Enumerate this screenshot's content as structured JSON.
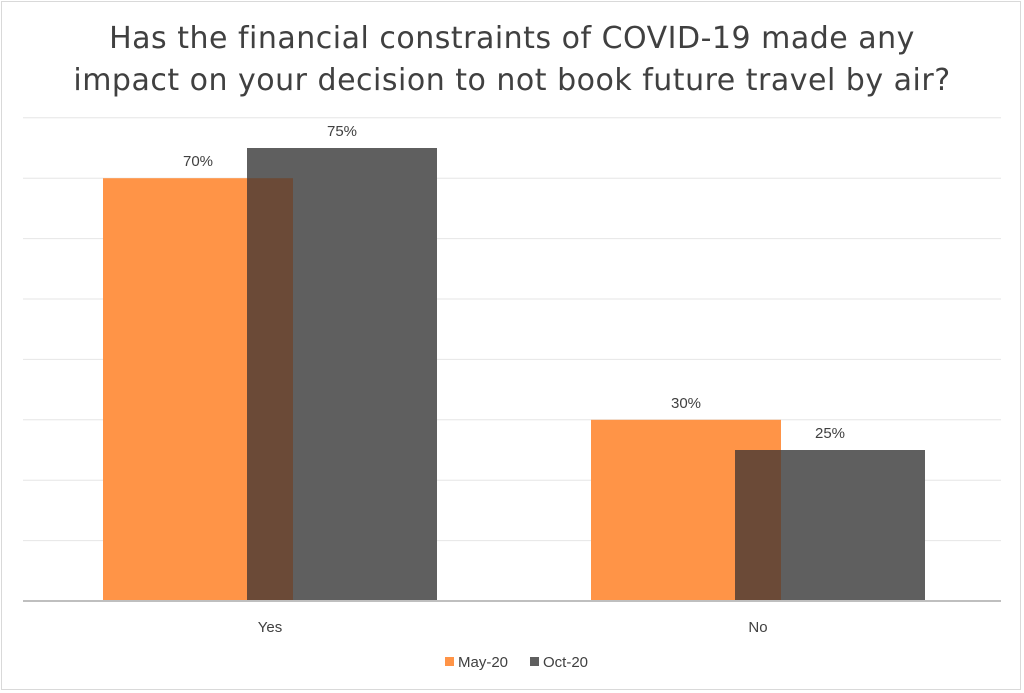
{
  "chart_data": {
    "type": "bar",
    "title_lines": [
      "Has the financial constraints of COVID-19 made any",
      "impact on your decision to not book future travel by air?"
    ],
    "categories": [
      "Yes",
      "No"
    ],
    "series": [
      {
        "name": "May-20",
        "values": [
          70,
          30
        ],
        "labels": [
          "70%",
          "30%"
        ],
        "color": "#ff9447"
      },
      {
        "name": "Oct-20",
        "values": [
          75,
          25
        ],
        "labels": [
          "75%",
          "25%"
        ],
        "color": "#5f5f5f"
      }
    ],
    "overlap_color": "#6b4a37",
    "ylim": [
      0,
      80
    ],
    "y_gridline_step": 10,
    "grid": true,
    "legend_position": "bottom",
    "xlabel": "",
    "ylabel": ""
  }
}
